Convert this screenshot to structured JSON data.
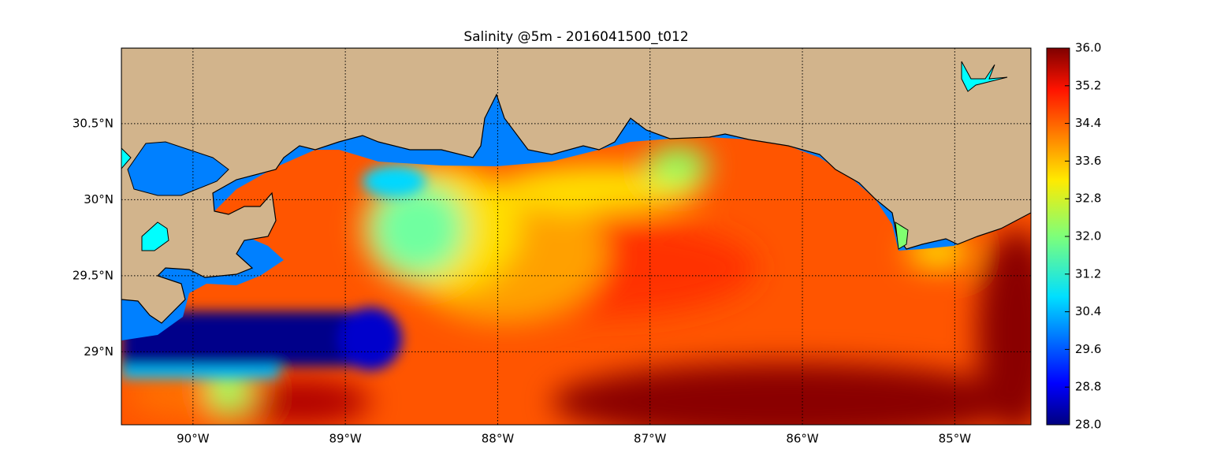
{
  "title": "Salinity @5m - 2016041500_t012",
  "map": {
    "lon_range": [
      -90.47,
      -84.5
    ],
    "lat_range": [
      28.52,
      30.997
    ],
    "lon_ticks": [
      {
        "value": -90,
        "label": "90°W"
      },
      {
        "value": -89,
        "label": "89°W"
      },
      {
        "value": -88,
        "label": "88°W"
      },
      {
        "value": -87,
        "label": "87°W"
      },
      {
        "value": -86,
        "label": "86°W"
      },
      {
        "value": -85,
        "label": "85°W"
      }
    ],
    "lat_ticks": [
      {
        "value": 30.5,
        "label": "30.5°N"
      },
      {
        "value": 30,
        "label": "30°N"
      },
      {
        "value": 29.5,
        "label": "29.5°N"
      },
      {
        "value": 29,
        "label": "29°N"
      }
    ]
  },
  "colorbar": {
    "lim": [
      28,
      36
    ],
    "ticks": [
      {
        "value": 36,
        "label": "36.0"
      },
      {
        "value": 35.2,
        "label": "35.2"
      },
      {
        "value": 34.4,
        "label": "34.4"
      },
      {
        "value": 33.6,
        "label": "33.6"
      },
      {
        "value": 32.8,
        "label": "32.8"
      },
      {
        "value": 32,
        "label": "32.0"
      },
      {
        "value": 31.2,
        "label": "31.2"
      },
      {
        "value": 30.4,
        "label": "30.4"
      },
      {
        "value": 29.6,
        "label": "29.6"
      },
      {
        "value": 28.8,
        "label": "28.8"
      },
      {
        "value": 28,
        "label": "28.0"
      }
    ]
  }
}
